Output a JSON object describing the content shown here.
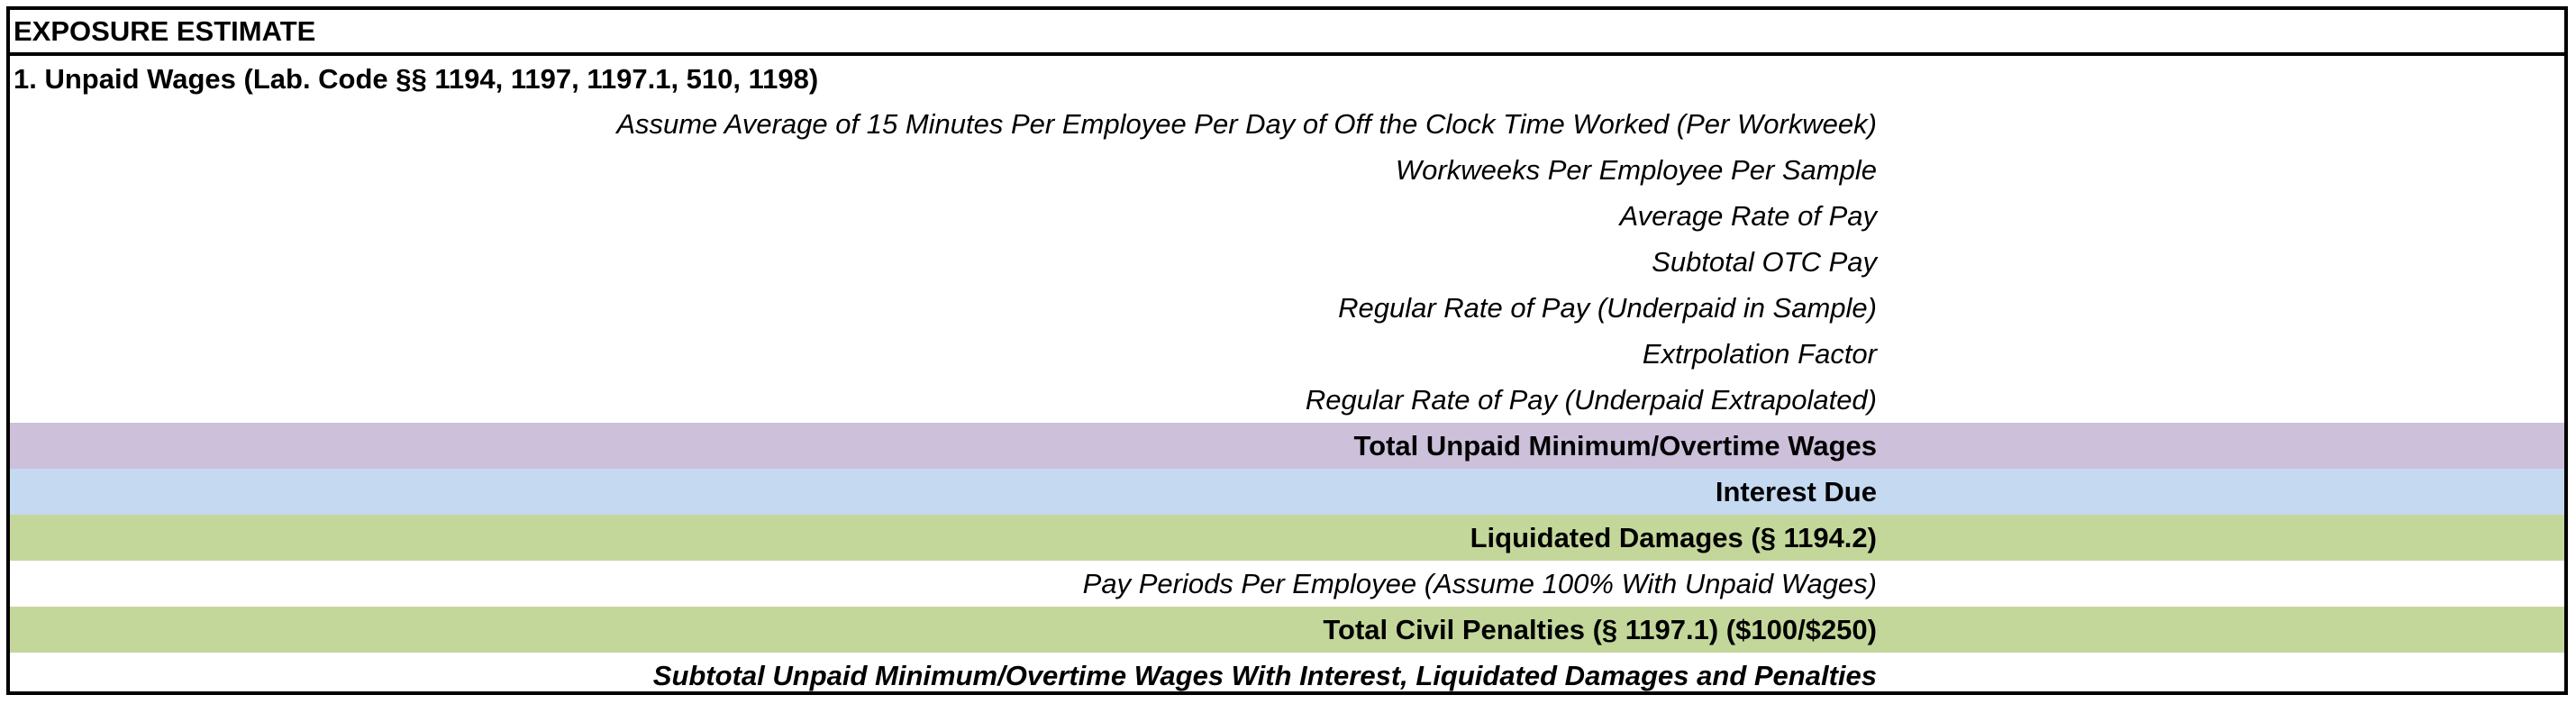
{
  "sheet": {
    "title": "EXPOSURE ESTIMATE",
    "section_heading": "1. Unpaid Wages (Lab. Code §§ 1194, 1197, 1197.1, 510, 1198)",
    "rows": [
      {
        "label": "Assume Average of 15 Minutes Per Employee Per Day of Off the Clock Time Worked (Per Workweek)",
        "fill": "#ffffff",
        "style": "italic"
      },
      {
        "label": "Workweeks Per Employee Per Sample",
        "fill": "#ffffff",
        "style": "italic"
      },
      {
        "label": "Average Rate of Pay",
        "fill": "#ffffff",
        "style": "italic"
      },
      {
        "label": "Subtotal OTC Pay",
        "fill": "#ffffff",
        "style": "italic"
      },
      {
        "label": "Regular Rate of Pay (Underpaid in Sample)",
        "fill": "#ffffff",
        "style": "italic"
      },
      {
        "label": "Extrpolation Factor",
        "fill": "#ffffff",
        "style": "italic"
      },
      {
        "label": "Regular Rate of Pay (Underpaid Extrapolated)",
        "fill": "#ffffff",
        "style": "italic"
      },
      {
        "label": "Total Unpaid Minimum/Overtime Wages",
        "fill": "#ccc0da",
        "style": "bold"
      },
      {
        "label": "Interest Due",
        "fill": "#c5d9f1",
        "style": "bold"
      },
      {
        "label": "Liquidated Damages (§ 1194.2)",
        "fill": "#c4d79b",
        "style": "bold"
      },
      {
        "label": "Pay Periods Per Employee (Assume 100% With Unpaid Wages)",
        "fill": "#ffffff",
        "style": "italic"
      },
      {
        "label": "Total Civil Penalties (§ 1197.1) ($100/$250)",
        "fill": "#c4d79b",
        "style": "bold"
      },
      {
        "label": "Subtotal Unpaid Minimum/Overtime Wages With Interest, Liquidated Damages and Penalties",
        "fill": "#ffffff",
        "style": "bold-italic"
      }
    ]
  }
}
